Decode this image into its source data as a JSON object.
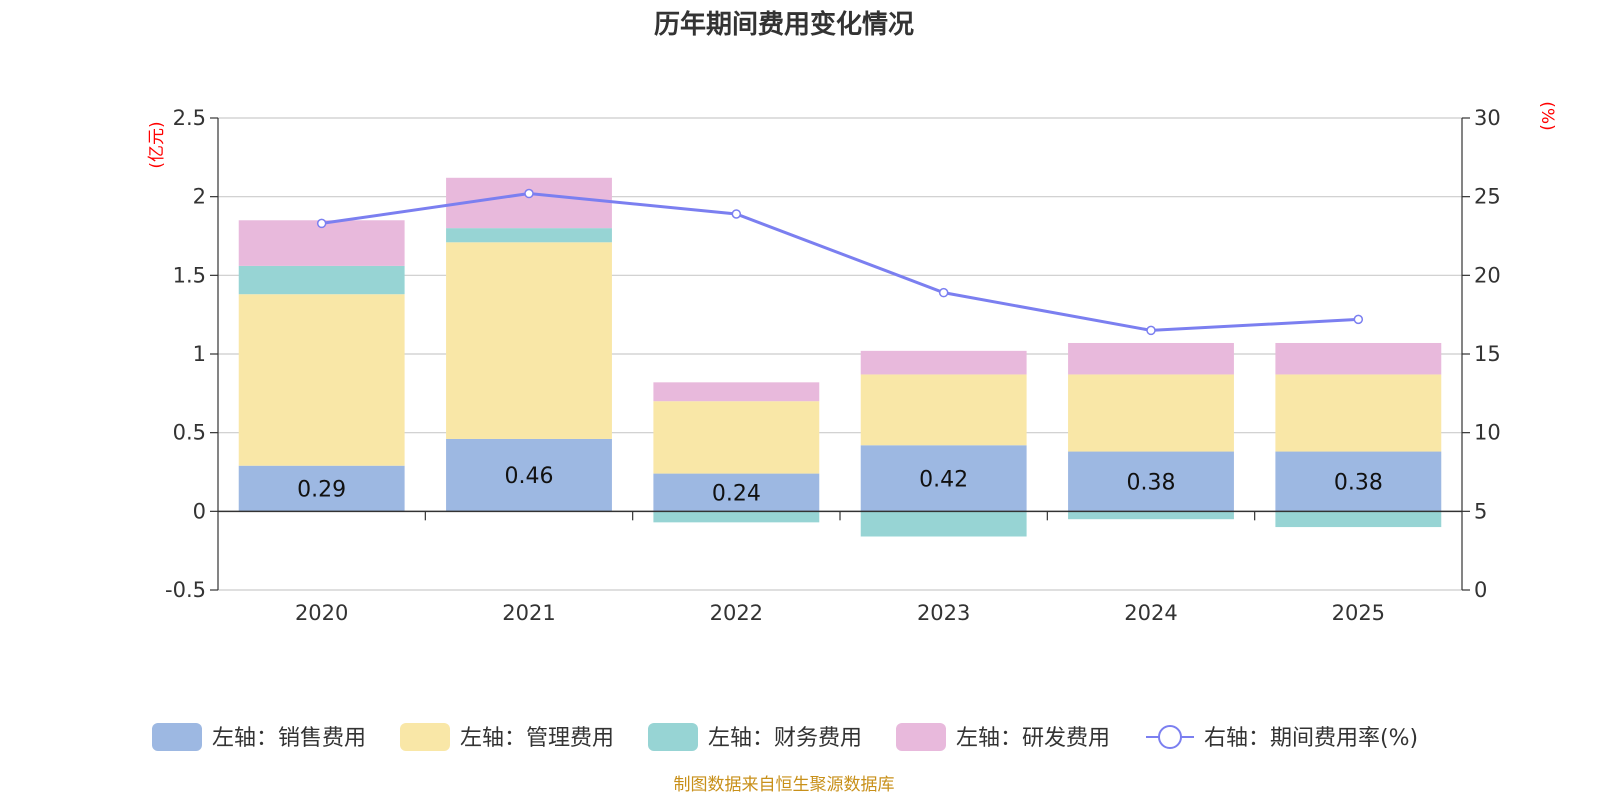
{
  "chart_data": {
    "type": "bar",
    "title": "历年期间费用变化情况",
    "categories": [
      "2020",
      "2021",
      "2022",
      "2023",
      "2024",
      "2025"
    ],
    "left_axis": {
      "unit": "(亿元)",
      "ylim": [
        -0.5,
        2.5
      ],
      "ticks": [
        -0.5,
        0,
        0.5,
        1,
        1.5,
        2,
        2.5
      ],
      "tick_labels": [
        "-0.5",
        "0",
        "0.5",
        "1",
        "1.5",
        "2",
        "2.5"
      ]
    },
    "right_axis": {
      "unit": "(%)",
      "ylim": [
        0,
        30
      ],
      "ticks": [
        0,
        5,
        10,
        15,
        20,
        25,
        30
      ],
      "tick_labels": [
        "0",
        "5",
        "10",
        "15",
        "20",
        "25",
        "30"
      ]
    },
    "series": [
      {
        "name": "左轴：销售费用",
        "axis": "left",
        "kind": "bar",
        "color": "#9db8e2",
        "values": [
          0.29,
          0.46,
          0.24,
          0.42,
          0.38,
          0.38
        ],
        "labels": [
          "0.29",
          "0.46",
          "0.24",
          "0.42",
          "0.38",
          "0.38"
        ]
      },
      {
        "name": "左轴：管理费用",
        "axis": "left",
        "kind": "bar",
        "color": "#f9e7a7",
        "values": [
          1.09,
          1.25,
          0.46,
          0.45,
          0.49,
          0.49
        ]
      },
      {
        "name": "左轴：财务费用",
        "axis": "left",
        "kind": "bar",
        "color": "#97d4d4",
        "values": [
          0.18,
          0.09,
          -0.07,
          -0.16,
          -0.05,
          -0.1
        ]
      },
      {
        "name": "左轴：研发费用",
        "axis": "left",
        "kind": "bar",
        "color": "#e8b9dc",
        "values": [
          0.29,
          0.32,
          0.12,
          0.15,
          0.2,
          0.2
        ]
      },
      {
        "name": "右轴：期间费用率(%)",
        "axis": "right",
        "kind": "line",
        "color": "#7b7ff0",
        "values": [
          23.3,
          25.2,
          23.9,
          18.9,
          16.5,
          17.2
        ]
      }
    ],
    "grid": true,
    "legend_position": "bottom"
  },
  "source": "制图数据来自恒生聚源数据库"
}
